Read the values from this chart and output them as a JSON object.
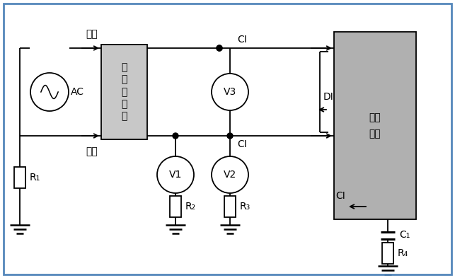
{
  "bg_color": "#ffffff",
  "border_color": "#5588bb",
  "filter_box_color": "#c8c8c8",
  "device_box_color": "#b0b0b0",
  "filter_label": "低\n通\n滤\n波\n器",
  "device_label": "电子\n设备",
  "ac_label": "AC",
  "v1_label": "V1",
  "v2_label": "V2",
  "v3_label": "V3",
  "huoxian": "火线",
  "zeroxian": "零线",
  "CI": "CI",
  "DI": "DI",
  "R1": "R₁",
  "R2": "R₂",
  "R3": "R₃",
  "R4": "R₄",
  "C1": "C₁"
}
